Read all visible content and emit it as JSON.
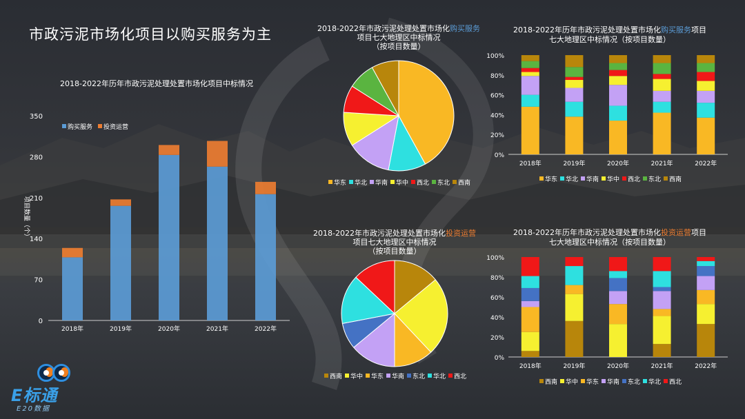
{
  "page_title": "市政污泥市场化项目以购买服务为主",
  "logo": {
    "main": "E标通",
    "sub": "E20数据"
  },
  "chart_data": [
    {
      "id": "annual",
      "type": "bar",
      "title": "2018-2022年历年市政污泥处理处置市场化项目中标情况",
      "categories": [
        "2018年",
        "2019年",
        "2020年",
        "2021年",
        "2022年"
      ],
      "series": [
        {
          "name": "购买服务",
          "values": [
            108,
            196,
            283,
            263,
            216
          ],
          "color": "#5b9bd5"
        },
        {
          "name": "投资运营",
          "values": [
            16,
            11,
            17,
            44,
            21
          ],
          "color": "#ed7d31"
        }
      ],
      "ylabel": "项目数量（个）",
      "ylim": [
        0,
        350
      ],
      "yticks": [
        "0",
        "70",
        "140",
        "210",
        "280",
        "350"
      ],
      "legend": "top-left"
    },
    {
      "id": "pie_service",
      "type": "pie",
      "title_pre": "2018-2022年市政污泥处理处置市场化",
      "title_hl": "购买服务",
      "title_l2": "项目七大地理区中标情况",
      "title_l3": "（按项目数量）",
      "highlight_color": "#5b9bd5",
      "slices": [
        {
          "name": "华东",
          "value": 42,
          "color": "#f9b824"
        },
        {
          "name": "华北",
          "value": 11,
          "color": "#2ee0e0"
        },
        {
          "name": "华南",
          "value": 13,
          "color": "#c3a1f5"
        },
        {
          "name": "华中",
          "value": 10,
          "color": "#f6f030"
        },
        {
          "name": "西北",
          "value": 8,
          "color": "#f01818"
        },
        {
          "name": "东北",
          "value": 8,
          "color": "#5ab440"
        },
        {
          "name": "西南",
          "value": 8,
          "color": "#b8860b"
        }
      ],
      "legend": "bottom"
    },
    {
      "id": "stack_service",
      "type": "bar",
      "stacked": "percent",
      "title_pre": "2018-2022年历年市政污泥处理处置市场化",
      "title_hl": "购买服务",
      "title_post": "项目",
      "title_l2": "七大地理区中标情况（按项目数量）",
      "highlight_color": "#5b9bd5",
      "categories": [
        "2018年",
        "2019年",
        "2020年",
        "2021年",
        "2022年"
      ],
      "yticks": [
        "0%",
        "20%",
        "40%",
        "60%",
        "80%",
        "100%"
      ],
      "series": [
        {
          "name": "华东",
          "color": "#f9b824",
          "values": [
            48,
            38,
            34,
            42,
            37
          ]
        },
        {
          "name": "华北",
          "color": "#2ee0e0",
          "values": [
            12,
            15,
            15,
            11,
            15
          ]
        },
        {
          "name": "华南",
          "color": "#c3a1f5",
          "values": [
            19,
            14,
            21,
            11,
            12
          ]
        },
        {
          "name": "华中",
          "color": "#f6f030",
          "values": [
            4,
            8,
            9,
            12,
            10
          ]
        },
        {
          "name": "西北",
          "color": "#f01818",
          "values": [
            4,
            3,
            6,
            5,
            9
          ]
        },
        {
          "name": "东北",
          "color": "#5ab440",
          "values": [
            7,
            10,
            7,
            11,
            9
          ]
        },
        {
          "name": "西南",
          "color": "#b8860b",
          "values": [
            6,
            12,
            8,
            8,
            8
          ]
        }
      ],
      "legend": "bottom"
    },
    {
      "id": "pie_invest",
      "type": "pie",
      "title_pre": "2018-2022年市政污泥处理处置市场化",
      "title_hl": "投资运营",
      "title_l2": "项目七大地理区中标情况",
      "title_l3": "（按项目数量）",
      "highlight_color": "#ed7d31",
      "slices": [
        {
          "name": "西南",
          "value": 14,
          "color": "#b8860b"
        },
        {
          "name": "华中",
          "value": 24,
          "color": "#f6f030"
        },
        {
          "name": "华东",
          "value": 12,
          "color": "#f9b824"
        },
        {
          "name": "华南",
          "value": 14,
          "color": "#c3a1f5"
        },
        {
          "name": "东北",
          "value": 8,
          "color": "#4472c4"
        },
        {
          "name": "华北",
          "value": 15,
          "color": "#2ee0e0"
        },
        {
          "name": "西北",
          "value": 13,
          "color": "#f01818"
        }
      ],
      "legend": "bottom"
    },
    {
      "id": "stack_invest",
      "type": "bar",
      "stacked": "percent",
      "title_pre": "2018-2022年历年市政污泥处理处置市场化",
      "title_hl": "投资运营",
      "title_post": "项目",
      "title_l2": "七大地理区中标情况（按项目数量）",
      "highlight_color": "#ed7d31",
      "categories": [
        "2018年",
        "2019年",
        "2020年",
        "2021年",
        "2022年"
      ],
      "yticks": [
        "0%",
        "20%",
        "40%",
        "60%",
        "80%",
        "100%"
      ],
      "series": [
        {
          "name": "西南",
          "color": "#b8860b",
          "values": [
            6,
            36,
            0,
            13,
            33
          ]
        },
        {
          "name": "华中",
          "color": "#f6f030",
          "values": [
            19,
            27,
            33,
            28,
            20
          ]
        },
        {
          "name": "华东",
          "color": "#f9b824",
          "values": [
            25,
            9,
            20,
            7,
            14
          ]
        },
        {
          "name": "华南",
          "color": "#c3a1f5",
          "values": [
            6,
            0,
            13,
            18,
            14
          ]
        },
        {
          "name": "东北",
          "color": "#4472c4",
          "values": [
            13,
            0,
            13,
            4,
            10
          ]
        },
        {
          "name": "华北",
          "color": "#2ee0e0",
          "values": [
            12,
            19,
            7,
            16,
            5
          ]
        },
        {
          "name": "西北",
          "color": "#f01818",
          "values": [
            19,
            9,
            14,
            14,
            4
          ]
        }
      ],
      "legend": "bottom"
    }
  ]
}
